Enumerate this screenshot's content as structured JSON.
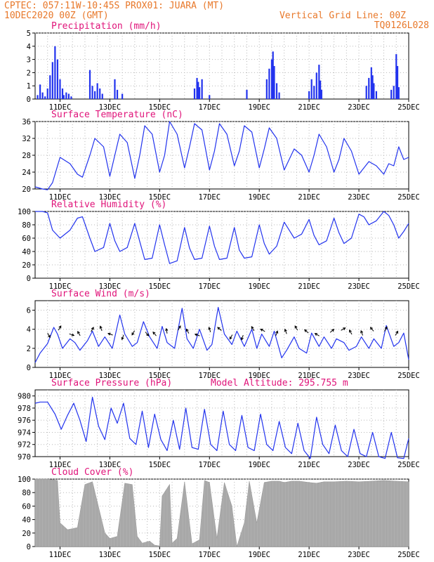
{
  "header": {
    "line1": "CPTEC:   057:11W-10:45S   PROX01: JUARA (MT)",
    "line2": "10DEC2020 00Z (GMT)",
    "grid_note": "Vertical Grid Line: 00Z",
    "code": "TQ0126L028"
  },
  "colors": {
    "header": "#e8782a",
    "title": "#e0147a",
    "series": "#2233ee",
    "cloud": "#a8a8a8",
    "grid": "#b8b8b8"
  },
  "x_tick_labels": [
    "11DEC",
    "13DEC",
    "15DEC",
    "17DEC",
    "19DEC",
    "21DEC",
    "23DEC",
    "25DEC"
  ],
  "chart_data": [
    {
      "id": "precip",
      "type": "bar",
      "title": "Precipitation (mm/h)",
      "ylim": [
        0,
        5
      ],
      "yticks": [
        "0",
        "1",
        "2",
        "3",
        "4",
        "5"
      ],
      "x": [
        10.1,
        10.2,
        10.3,
        10.4,
        10.5,
        10.6,
        10.7,
        10.8,
        10.9,
        11.0,
        11.1,
        11.15,
        11.25,
        11.35,
        11.45,
        12.2,
        12.3,
        12.4,
        12.5,
        12.6,
        12.7,
        13.2,
        13.3,
        13.5,
        16.4,
        16.5,
        16.55,
        16.6,
        16.7,
        17.0,
        18.5,
        19.3,
        19.4,
        19.5,
        19.55,
        19.6,
        19.7,
        19.8,
        21.0,
        21.1,
        21.2,
        21.3,
        21.4,
        21.45,
        21.5,
        23.3,
        23.4,
        23.5,
        23.55,
        23.6,
        23.7,
        24.3,
        24.4,
        24.5,
        24.55,
        24.6
      ],
      "values": [
        0.3,
        1.1,
        0.5,
        0.2,
        0.8,
        1.8,
        2.8,
        4.0,
        3.0,
        1.5,
        0.8,
        0.3,
        0.5,
        0.4,
        0.2,
        2.2,
        1.0,
        0.6,
        1.2,
        0.8,
        0.4,
        1.5,
        0.7,
        0.4,
        0.8,
        1.6,
        1.3,
        0.9,
        1.5,
        0.3,
        0.7,
        1.5,
        2.3,
        3.0,
        3.6,
        2.5,
        1.2,
        0.5,
        0.6,
        1.5,
        1.0,
        2.0,
        2.6,
        1.4,
        0.7,
        1.0,
        1.6,
        2.4,
        1.8,
        1.2,
        0.6,
        0.7,
        1.0,
        3.4,
        2.5,
        0.9
      ]
    },
    {
      "id": "temp",
      "type": "line",
      "title": "Surface Temperature (nC)",
      "ylim": [
        20,
        36
      ],
      "yticks": [
        "20",
        "24",
        "28",
        "32",
        "36"
      ],
      "x": [
        10.0,
        10.3,
        10.5,
        10.7,
        11.0,
        11.4,
        11.7,
        11.9,
        12.2,
        12.4,
        12.75,
        13.0,
        13.2,
        13.4,
        13.7,
        14.0,
        14.2,
        14.4,
        14.7,
        15.0,
        15.2,
        15.4,
        15.7,
        16.0,
        16.2,
        16.4,
        16.7,
        17.0,
        17.2,
        17.4,
        17.7,
        18.0,
        18.2,
        18.4,
        18.7,
        19.0,
        19.2,
        19.4,
        19.7,
        20.0,
        20.2,
        20.4,
        20.7,
        21.0,
        21.2,
        21.4,
        21.7,
        22.0,
        22.2,
        22.4,
        22.7,
        23.0,
        23.2,
        23.4,
        23.7,
        24.0,
        24.2,
        24.4,
        24.6,
        24.8,
        25.0
      ],
      "values": [
        20.5,
        20.0,
        19.8,
        21.5,
        27.5,
        26.0,
        23.5,
        22.8,
        28.0,
        32.0,
        30.0,
        23.0,
        28.0,
        33.0,
        31.0,
        22.5,
        28.0,
        35.0,
        33.0,
        24.0,
        28.0,
        36.0,
        33.0,
        25.0,
        30.0,
        35.5,
        34.0,
        24.5,
        29.0,
        35.5,
        33.0,
        25.5,
        29.0,
        35.0,
        33.5,
        25.0,
        29.5,
        34.5,
        32.0,
        24.5,
        27.0,
        29.5,
        28.0,
        24.0,
        28.0,
        33.0,
        30.0,
        24.0,
        27.0,
        32.0,
        29.0,
        23.5,
        25.0,
        26.5,
        25.5,
        23.5,
        26.0,
        25.5,
        30.0,
        27.0,
        27.5
      ]
    },
    {
      "id": "rh",
      "type": "line",
      "title": "Relative Humidity (%)",
      "ylim": [
        0,
        100
      ],
      "yticks": [
        "0",
        "20",
        "40",
        "60",
        "80",
        "100"
      ],
      "x": [
        10.0,
        10.3,
        10.5,
        10.7,
        11.0,
        11.4,
        11.7,
        11.9,
        12.2,
        12.4,
        12.75,
        13.0,
        13.2,
        13.4,
        13.7,
        14.0,
        14.2,
        14.4,
        14.7,
        15.0,
        15.2,
        15.4,
        15.7,
        16.0,
        16.2,
        16.4,
        16.7,
        17.0,
        17.2,
        17.4,
        17.7,
        18.0,
        18.2,
        18.4,
        18.7,
        19.0,
        19.2,
        19.4,
        19.7,
        20.0,
        20.2,
        20.4,
        20.7,
        21.0,
        21.2,
        21.4,
        21.7,
        22.0,
        22.2,
        22.4,
        22.7,
        23.0,
        23.2,
        23.4,
        23.7,
        24.0,
        24.2,
        24.4,
        24.6,
        24.8,
        25.0
      ],
      "values": [
        100,
        100,
        98,
        72,
        60,
        72,
        90,
        92,
        60,
        40,
        46,
        82,
        56,
        40,
        46,
        82,
        55,
        28,
        30,
        80,
        50,
        22,
        26,
        76,
        45,
        28,
        30,
        78,
        48,
        28,
        30,
        76,
        42,
        30,
        32,
        80,
        52,
        36,
        48,
        84,
        72,
        60,
        66,
        88,
        64,
        50,
        56,
        90,
        68,
        52,
        60,
        96,
        92,
        80,
        86,
        100,
        94,
        80,
        60,
        70,
        82
      ]
    },
    {
      "id": "wind",
      "type": "line",
      "title": "Surface Wind (m/s)",
      "ylim": [
        0,
        7
      ],
      "yticks": [
        "0",
        "2",
        "4",
        "6"
      ],
      "x": [
        10.0,
        10.2,
        10.5,
        10.75,
        10.9,
        11.1,
        11.4,
        11.6,
        11.8,
        12.1,
        12.3,
        12.55,
        12.8,
        13.1,
        13.4,
        13.6,
        13.9,
        14.1,
        14.35,
        14.6,
        14.9,
        15.1,
        15.3,
        15.6,
        15.9,
        16.1,
        16.35,
        16.6,
        16.9,
        17.1,
        17.35,
        17.6,
        17.9,
        18.1,
        18.4,
        18.7,
        18.9,
        19.1,
        19.4,
        19.6,
        19.9,
        20.1,
        20.4,
        20.6,
        20.9,
        21.1,
        21.4,
        21.6,
        21.9,
        22.1,
        22.4,
        22.6,
        22.9,
        23.1,
        23.4,
        23.6,
        23.9,
        24.1,
        24.4,
        24.6,
        24.8,
        25.0
      ],
      "values": [
        0.5,
        1.5,
        2.5,
        4.2,
        3.5,
        2.0,
        3.0,
        2.6,
        1.8,
        2.8,
        3.8,
        2.2,
        3.2,
        2.0,
        5.5,
        3.5,
        2.2,
        2.6,
        4.8,
        3.2,
        2.0,
        4.3,
        2.6,
        2.0,
        6.2,
        3.0,
        2.0,
        4.0,
        1.8,
        2.4,
        6.3,
        3.5,
        2.4,
        3.8,
        2.2,
        4.0,
        2.0,
        3.5,
        2.2,
        3.8,
        1.0,
        1.8,
        3.2,
        2.0,
        1.5,
        3.6,
        2.2,
        3.2,
        2.0,
        3.0,
        2.6,
        1.8,
        2.2,
        3.2,
        2.0,
        3.0,
        2.0,
        4.4,
        2.2,
        2.6,
        3.6,
        0.8
      ]
    },
    {
      "id": "pressure",
      "type": "line",
      "title": "Surface Pressure (hPa)",
      "annotation": "Model Altitude: 295.755 m",
      "ylim": [
        970,
        981
      ],
      "yticks": [
        "970",
        "972",
        "974",
        "976",
        "978",
        "980"
      ],
      "x": [
        10.0,
        10.2,
        10.5,
        10.8,
        11.05,
        11.3,
        11.55,
        11.8,
        12.05,
        12.3,
        12.55,
        12.8,
        13.05,
        13.3,
        13.55,
        13.8,
        14.05,
        14.3,
        14.55,
        14.8,
        15.05,
        15.3,
        15.55,
        15.8,
        16.05,
        16.3,
        16.55,
        16.8,
        17.05,
        17.3,
        17.55,
        17.8,
        18.05,
        18.3,
        18.55,
        18.8,
        19.05,
        19.3,
        19.55,
        19.8,
        20.05,
        20.3,
        20.55,
        20.8,
        21.05,
        21.3,
        21.55,
        21.8,
        22.05,
        22.3,
        22.55,
        22.8,
        23.05,
        23.3,
        23.55,
        23.8,
        24.05,
        24.3,
        24.55,
        24.8,
        25.0
      ],
      "values": [
        978.8,
        979.0,
        979.0,
        977.0,
        974.5,
        976.8,
        978.8,
        976.0,
        972.5,
        979.8,
        975.0,
        972.8,
        978.0,
        975.5,
        978.8,
        973.0,
        972.0,
        977.5,
        971.5,
        977.0,
        972.8,
        971.0,
        976.0,
        971.2,
        978.0,
        971.5,
        971.2,
        977.8,
        972.0,
        971.0,
        977.5,
        972.0,
        971.0,
        976.8,
        971.5,
        971.0,
        977.0,
        972.0,
        971.0,
        975.8,
        971.5,
        970.5,
        975.5,
        971.0,
        969.5,
        976.5,
        972.0,
        970.5,
        975.2,
        971.0,
        970.0,
        974.5,
        970.5,
        970.0,
        974.0,
        970.0,
        969.5,
        974.0,
        969.8,
        969.5,
        973.0
      ]
    },
    {
      "id": "cloud",
      "type": "area",
      "title": "Cloud Cover (%)",
      "ylim": [
        0,
        100
      ],
      "yticks": [
        "0",
        "20",
        "40",
        "60",
        "80",
        "100"
      ],
      "x": [
        10.0,
        10.5,
        10.9,
        11.0,
        11.3,
        11.7,
        12.0,
        12.3,
        12.8,
        13.0,
        13.3,
        13.6,
        13.9,
        14.1,
        14.3,
        14.6,
        14.8,
        15.0,
        15.1,
        15.4,
        15.5,
        15.7,
        16.0,
        16.3,
        16.6,
        16.8,
        17.0,
        17.3,
        17.6,
        17.9,
        18.1,
        18.4,
        18.6,
        18.9,
        19.2,
        19.5,
        19.8,
        20.0,
        20.3,
        20.6,
        21.0,
        21.3,
        21.6,
        22.0,
        22.5,
        23.0,
        23.5,
        24.0,
        24.5,
        25.0
      ],
      "values": [
        100,
        100,
        98,
        35,
        25,
        28,
        92,
        96,
        20,
        12,
        15,
        94,
        92,
        15,
        5,
        8,
        2,
        1,
        75,
        92,
        5,
        12,
        96,
        4,
        10,
        98,
        95,
        12,
        95,
        60,
        0,
        35,
        97,
        35,
        95,
        97,
        97,
        95,
        97,
        97,
        95,
        94,
        96,
        96,
        97,
        96,
        97,
        98,
        97,
        96
      ]
    }
  ]
}
